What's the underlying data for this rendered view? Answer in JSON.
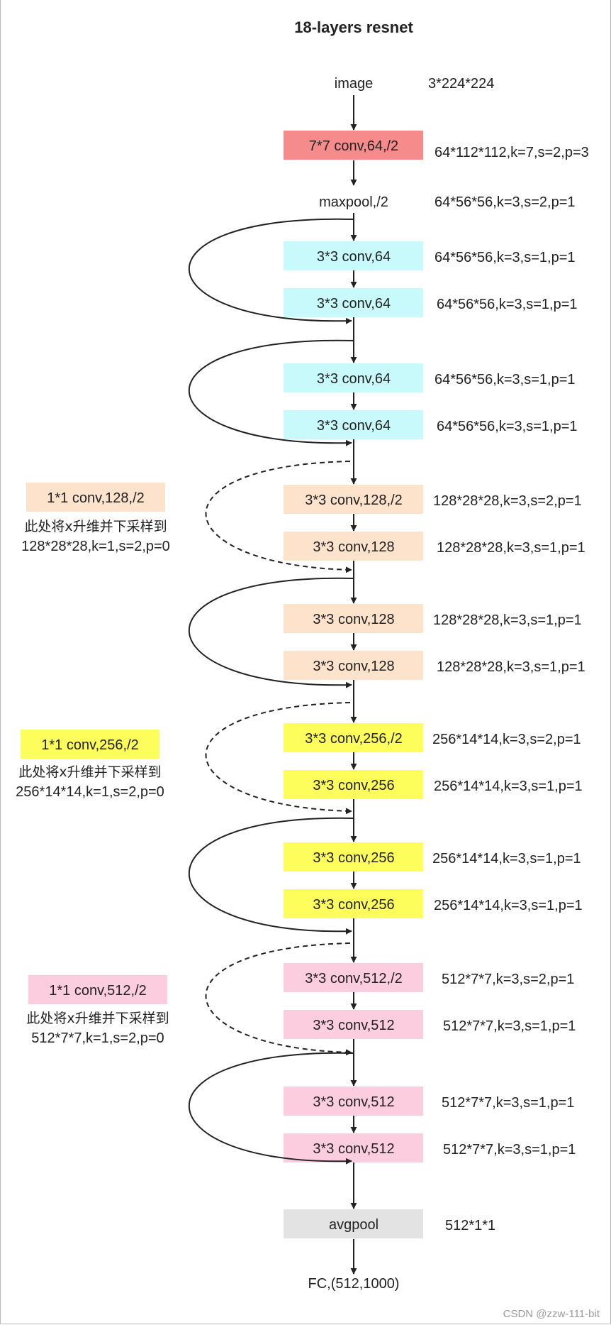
{
  "title": "18-layers resnet",
  "input": {
    "label": "image",
    "shape": "3*224*224"
  },
  "stem": {
    "label": "7*7 conv,64,/2",
    "shape": "64*112*112,k=7,s=2,p=3"
  },
  "maxpool": {
    "label": "maxpool,/2",
    "shape": "64*56*56,k=3,s=2,p=1"
  },
  "layers": [
    {
      "label": "3*3 conv,64",
      "shape": "64*56*56,k=3,s=1,p=1"
    },
    {
      "label": "3*3 conv,64",
      "shape": "64*56*56,k=3,s=1,p=1"
    },
    {
      "label": "3*3 conv,64",
      "shape": "64*56*56,k=3,s=1,p=1"
    },
    {
      "label": "3*3 conv,64",
      "shape": "64*56*56,k=3,s=1,p=1"
    },
    {
      "label": "3*3 conv,128,/2",
      "shape": "128*28*28,k=3,s=2,p=1"
    },
    {
      "label": "3*3 conv,128",
      "shape": "128*28*28,k=3,s=1,p=1"
    },
    {
      "label": "3*3 conv,128",
      "shape": "128*28*28,k=3,s=1,p=1"
    },
    {
      "label": "3*3 conv,128",
      "shape": "128*28*28,k=3,s=1,p=1"
    },
    {
      "label": "3*3 conv,256,/2",
      "shape": "256*14*14,k=3,s=2,p=1"
    },
    {
      "label": "3*3 conv,256",
      "shape": "256*14*14,k=3,s=1,p=1"
    },
    {
      "label": "3*3 conv,256",
      "shape": "256*14*14,k=3,s=1,p=1"
    },
    {
      "label": "3*3 conv,256",
      "shape": "256*14*14,k=3,s=1,p=1"
    },
    {
      "label": "3*3 conv,512,/2",
      "shape": "512*7*7,k=3,s=2,p=1"
    },
    {
      "label": "3*3 conv,512",
      "shape": "512*7*7,k=3,s=1,p=1"
    },
    {
      "label": "3*3 conv,512",
      "shape": "512*7*7,k=3,s=1,p=1"
    },
    {
      "label": "3*3 conv,512",
      "shape": "512*7*7,k=3,s=1,p=1"
    }
  ],
  "downsample": [
    {
      "label": "1*1 conv,128,/2",
      "note1": "此处将x升维并下采样到",
      "note2": "128*28*28,k=1,s=2,p=0"
    },
    {
      "label": "1*1 conv,256,/2",
      "note1": "此处将x升维并下采样到",
      "note2": "256*14*14,k=1,s=2,p=0"
    },
    {
      "label": "1*1 conv,512,/2",
      "note1": "此处将x升维并下采样到",
      "note2": "512*7*7,k=1,s=2,p=0"
    }
  ],
  "avgpool": {
    "label": "avgpool",
    "shape": "512*1*1"
  },
  "fc": {
    "label": "FC,(512,1000)"
  },
  "watermark": "CSDN @zzw-111-bit",
  "colors": {
    "stem": "#f68b8b",
    "stage64": "#c8fafc",
    "stage128": "#fde2cc",
    "stage256": "#fdfd5c",
    "stage512": "#fcccdf",
    "avgpool": "#e3e3e3",
    "line": "#222222"
  }
}
